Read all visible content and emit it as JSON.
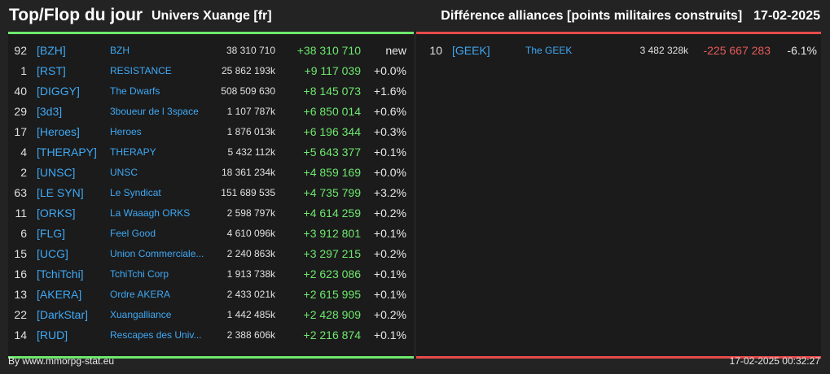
{
  "header": {
    "title": "Top/Flop du jour",
    "universe": "Univers Xuange [fr]",
    "subject": "Différence alliances [points militaires construits]",
    "date": "17-02-2025"
  },
  "colors": {
    "up": "#6ee86e",
    "down": "#e64a4a",
    "link": "#3fa9f5"
  },
  "top": [
    {
      "rank": "92",
      "tag": "[BZH]",
      "name": "BZH",
      "points": "38 310 710",
      "diff": "+38 310 710",
      "pct": "new"
    },
    {
      "rank": "1",
      "tag": "[RST]",
      "name": "RESISTANCE",
      "points": "25 862 193k",
      "diff": "+9 117 039",
      "pct": "+0.0%"
    },
    {
      "rank": "40",
      "tag": "[DIGGY]",
      "name": "The Dwarfs",
      "points": "508 509 630",
      "diff": "+8 145 073",
      "pct": "+1.6%"
    },
    {
      "rank": "29",
      "tag": "[3d3]",
      "name": "3boueur de l 3space",
      "points": "1 107 787k",
      "diff": "+6 850 014",
      "pct": "+0.6%"
    },
    {
      "rank": "17",
      "tag": "[Heroes]",
      "name": "Heroes",
      "points": "1 876 013k",
      "diff": "+6 196 344",
      "pct": "+0.3%"
    },
    {
      "rank": "4",
      "tag": "[THERAPY]",
      "name": "THERAPY",
      "points": "5 432 112k",
      "diff": "+5 643 377",
      "pct": "+0.1%"
    },
    {
      "rank": "2",
      "tag": "[UNSC]",
      "name": "UNSC",
      "points": "18 361 234k",
      "diff": "+4 859 169",
      "pct": "+0.0%"
    },
    {
      "rank": "63",
      "tag": "[LE SYN]",
      "name": "Le Syndicat",
      "points": "151 689 535",
      "diff": "+4 735 799",
      "pct": "+3.2%"
    },
    {
      "rank": "11",
      "tag": "[ORKS]",
      "name": "La Waaagh ORKS",
      "points": "2 598 797k",
      "diff": "+4 614 259",
      "pct": "+0.2%"
    },
    {
      "rank": "6",
      "tag": "[FLG]",
      "name": "Feel Good",
      "points": "4 610 096k",
      "diff": "+3 912 801",
      "pct": "+0.1%"
    },
    {
      "rank": "15",
      "tag": "[UCG]",
      "name": "Union Commerciale...",
      "points": "2 240 863k",
      "diff": "+3 297 215",
      "pct": "+0.2%"
    },
    {
      "rank": "16",
      "tag": "[TchiTchi]",
      "name": "TchiTchi Corp",
      "points": "1 913 738k",
      "diff": "+2 623 086",
      "pct": "+0.1%"
    },
    {
      "rank": "13",
      "tag": "[AKERA]",
      "name": "Ordre AKERA",
      "points": "2 433 021k",
      "diff": "+2 615 995",
      "pct": "+0.1%"
    },
    {
      "rank": "22",
      "tag": "[DarkStar]",
      "name": "Xuangalliance",
      "points": "1 442 485k",
      "diff": "+2 428 909",
      "pct": "+0.2%"
    },
    {
      "rank": "14",
      "tag": "[RUD]",
      "name": "Rescapes des Univ...",
      "points": "2 388 606k",
      "diff": "+2 216 874",
      "pct": "+0.1%"
    }
  ],
  "flop": [
    {
      "rank": "10",
      "tag": "[GEEK]",
      "name": "The GEEK",
      "points": "3 482 328k",
      "diff": "-225 667 283",
      "pct": "-6.1%"
    }
  ],
  "footer": {
    "credit": "By www.mmorpg-stat.eu",
    "timestamp": "17-02-2025 00:32:27"
  }
}
